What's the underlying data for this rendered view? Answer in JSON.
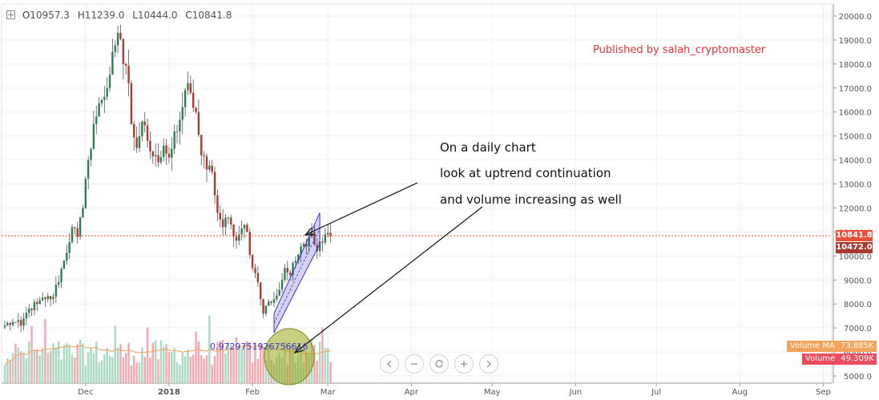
{
  "ohlc": {
    "o_key": "O",
    "o_val": "10957.3",
    "h_key": "H",
    "h_val": "11239.0",
    "l_key": "L",
    "l_val": "10444.0",
    "c_key": "C",
    "c_val": "10841.8"
  },
  "publisher": "Published by salah_cryptomaster",
  "annotation_lines": [
    "On a daily chart",
    "look at uptrend continuation",
    "and volume increasing as well"
  ],
  "correlation_label": "0.9729751926756616",
  "price_tags": {
    "last": "10841.8",
    "second": "10472.0"
  },
  "volume_tags": {
    "ma_label": "Volume MA",
    "ma_value": "73.885K",
    "vol_label": "Volume",
    "vol_value": "49.309K"
  },
  "controls": [
    "chevron-left-icon",
    "minus-icon",
    "reset-icon",
    "plus-icon",
    "chevron-right-icon"
  ],
  "colors": {
    "up": "#2f7d4f",
    "down": "#a83a32",
    "vol_up": "#a9d9c1",
    "vol_down": "#f2a8b0",
    "last_price": "#e8503a",
    "channel": "#3b35c9",
    "vol_ma": "#f3a25a",
    "highlight": "#9aa51b"
  },
  "chart_data": {
    "type": "candlestick",
    "y_axis": {
      "ticks": [
        5000,
        6000,
        7000,
        8000,
        9000,
        10000,
        11000,
        12000,
        13000,
        14000,
        15000,
        16000,
        17000,
        18000,
        19000,
        20000
      ],
      "tick_labels": [
        "5000.0",
        "6000.0",
        "7000.0",
        "8000.0",
        "9000.0",
        "10000.0",
        "11000.0",
        "12000.0",
        "13000.0",
        "14000.0",
        "15000.0",
        "16000.0",
        "17000.0",
        "18000.0",
        "19000.0",
        "20000.0"
      ],
      "range": [
        4700,
        20500
      ]
    },
    "x_axis": {
      "labels": [
        "Dec",
        "2018",
        "Feb",
        "Mar",
        "Apr",
        "May",
        "Jun",
        "Jul",
        "Aug",
        "Sep"
      ],
      "label_day_index": [
        30,
        61,
        92,
        120,
        151,
        181,
        212,
        242,
        273,
        304
      ],
      "start": "2017-11-01",
      "last_candle_index": 121
    },
    "last_price": 10841.8,
    "anchors": [
      [
        0,
        7100
      ],
      [
        3,
        7250
      ],
      [
        6,
        7100
      ],
      [
        9,
        7800
      ],
      [
        12,
        8000
      ],
      [
        15,
        8200
      ],
      [
        18,
        8300
      ],
      [
        22,
        9800
      ],
      [
        25,
        11200
      ],
      [
        27,
        10800
      ],
      [
        29,
        12000
      ],
      [
        31,
        14000
      ],
      [
        33,
        15500
      ],
      [
        36,
        16500
      ],
      [
        38,
        17000
      ],
      [
        40,
        18500
      ],
      [
        42,
        19300
      ],
      [
        44,
        18000
      ],
      [
        46,
        17200
      ],
      [
        47,
        15500
      ],
      [
        49,
        14500
      ],
      [
        51,
        15600
      ],
      [
        53,
        14800
      ],
      [
        56,
        14200
      ],
      [
        57,
        13900
      ],
      [
        59,
        14600
      ],
      [
        61,
        14100
      ],
      [
        64,
        15200
      ],
      [
        66,
        16200
      ],
      [
        68,
        17200
      ],
      [
        69,
        16800
      ],
      [
        71,
        16000
      ],
      [
        73,
        14200
      ],
      [
        75,
        13600
      ],
      [
        77,
        13500
      ],
      [
        79,
        11800
      ],
      [
        81,
        11200
      ],
      [
        83,
        11600
      ],
      [
        85,
        10800
      ],
      [
        87,
        10900
      ],
      [
        89,
        11300
      ],
      [
        90,
        11000
      ],
      [
        92,
        9500
      ],
      [
        94,
        8900
      ],
      [
        96,
        7600
      ],
      [
        98,
        8100
      ],
      [
        100,
        8200
      ],
      [
        102,
        8600
      ],
      [
        104,
        9500
      ],
      [
        106,
        9200
      ],
      [
        108,
        9800
      ],
      [
        110,
        10400
      ],
      [
        111,
        10500
      ],
      [
        113,
        10800
      ],
      [
        114,
        11000
      ],
      [
        116,
        10200
      ],
      [
        117,
        10600
      ],
      [
        119,
        10900
      ],
      [
        121,
        10841.8
      ]
    ],
    "volume_range": [
      0,
      190000
    ],
    "volume_ma_current": 73885,
    "volume_current": 49309
  }
}
